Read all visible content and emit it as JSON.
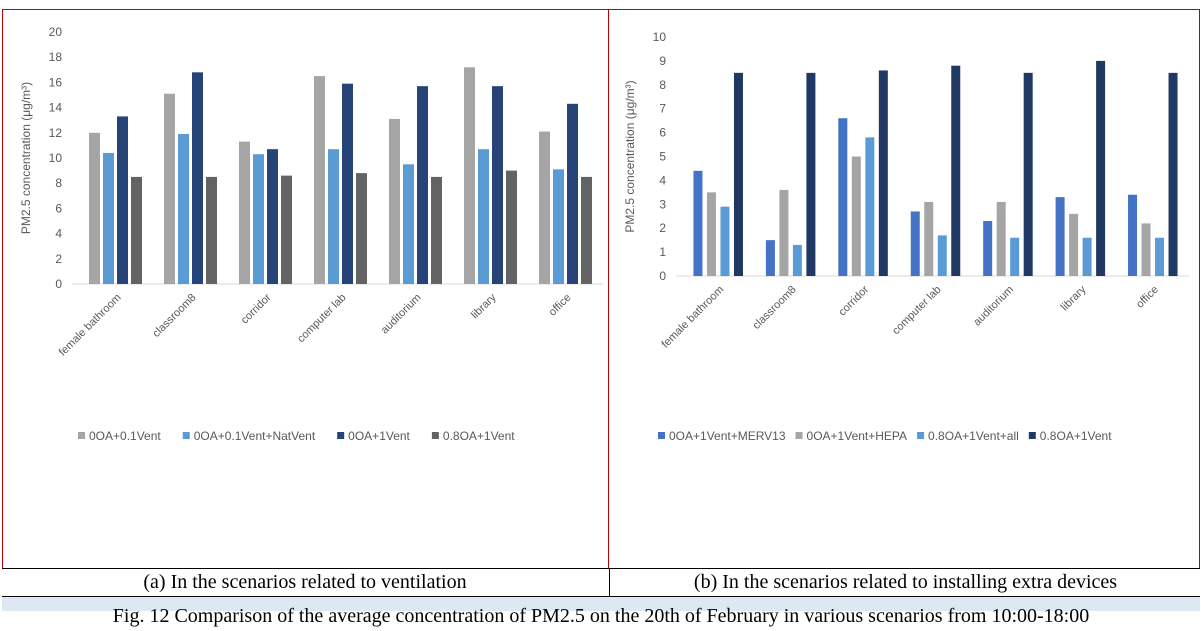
{
  "chart_data": [
    {
      "type": "bar",
      "ylabel": "PM2.5 concentration (μg/m³)",
      "ylim": [
        0,
        20
      ],
      "yticks": [
        0,
        2,
        4,
        6,
        8,
        10,
        12,
        14,
        16,
        18,
        20
      ],
      "grid": false,
      "legend_position": "bottom",
      "categories": [
        "female bathroom",
        "classroom8",
        "corridor",
        "computer lab",
        "auditorium",
        "library",
        "office"
      ],
      "series": [
        {
          "name": "0OA+0.1Vent",
          "color": "#a5a5a5",
          "values": [
            12.0,
            15.1,
            11.3,
            16.5,
            13.1,
            17.2,
            12.1
          ]
        },
        {
          "name": "0OA+0.1Vent+NatVent",
          "color": "#5b9bd5",
          "values": [
            10.4,
            11.9,
            10.3,
            10.7,
            9.5,
            10.7,
            9.1
          ]
        },
        {
          "name": "0OA+1Vent",
          "color": "#264478",
          "values": [
            13.3,
            16.8,
            10.7,
            15.9,
            15.7,
            15.7,
            14.3
          ]
        },
        {
          "name": "0.8OA+1Vent",
          "color": "#636363",
          "values": [
            8.5,
            8.5,
            8.6,
            8.8,
            8.5,
            9.0,
            8.5
          ]
        }
      ],
      "caption": "(a) In the scenarios related to ventilation"
    },
    {
      "type": "bar",
      "ylabel": "PM2.5 concentration (μg/m³)",
      "ylim": [
        0,
        10
      ],
      "yticks": [
        0,
        1,
        2,
        3,
        4,
        5,
        6,
        7,
        8,
        9,
        10
      ],
      "grid": false,
      "legend_position": "bottom",
      "categories": [
        "female bathroom",
        "classroom8",
        "corridor",
        "computer lab",
        "auditorium",
        "library",
        "office"
      ],
      "series": [
        {
          "name": "0OA+1Vent+MERV13",
          "color": "#4472c4",
          "values": [
            4.4,
            1.5,
            6.6,
            2.7,
            2.3,
            3.3,
            3.4
          ]
        },
        {
          "name": "0OA+1Vent+HEPA",
          "color": "#a5a5a5",
          "values": [
            3.5,
            3.6,
            5.0,
            3.1,
            3.1,
            2.6,
            2.2
          ]
        },
        {
          "name": "0.8OA+1Vent+all",
          "color": "#5b9bd5",
          "values": [
            2.9,
            1.3,
            5.8,
            1.7,
            1.6,
            1.6,
            1.6
          ]
        },
        {
          "name": "0.8OA+1Vent",
          "color": "#203864",
          "values": [
            8.5,
            8.5,
            8.6,
            8.8,
            8.5,
            9.0,
            8.5
          ]
        }
      ],
      "caption": "(b) In the scenarios related to installing extra devices"
    }
  ],
  "figure_caption": "Fig. 12 Comparison of the average concentration of PM2.5 on the 20th of February in various scenarios from 10:00-18:00"
}
